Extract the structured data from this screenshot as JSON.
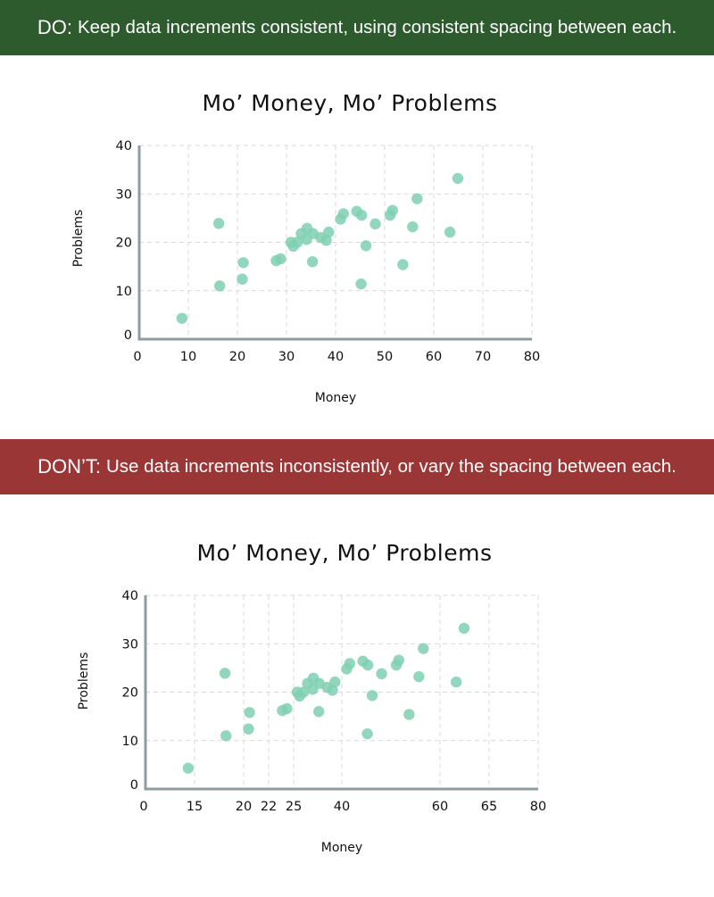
{
  "banners": {
    "do": {
      "lead": "DO:",
      "text": "Keep data increments consistent, using consistent spacing between each.",
      "color": "#2e5b2e"
    },
    "dont": {
      "lead": "DON’T:",
      "text": "Use data increments inconsistently, or vary the spacing between each.",
      "color": "#9b3636"
    }
  },
  "colors": {
    "point": "#7fd0b2",
    "axis": "#8c9c9f",
    "grid": "#d9d9d9"
  },
  "chart_data": [
    {
      "type": "scatter",
      "title": "Mo’ Money, Mo’ Problems",
      "xlabel": "Money",
      "ylabel": "Problems",
      "xlim": [
        0,
        80
      ],
      "ylim": [
        0,
        40
      ],
      "x_ticks": [
        0,
        10,
        20,
        30,
        40,
        50,
        60,
        70,
        80
      ],
      "y_ticks": [
        0,
        10,
        20,
        30,
        40
      ],
      "grid": true,
      "points": [
        {
          "x": 8.7,
          "y": 4.3
        },
        {
          "x": 16.2,
          "y": 23.9
        },
        {
          "x": 16.4,
          "y": 11.0
        },
        {
          "x": 21.0,
          "y": 12.4
        },
        {
          "x": 21.2,
          "y": 15.8
        },
        {
          "x": 27.9,
          "y": 16.2
        },
        {
          "x": 28.8,
          "y": 16.6
        },
        {
          "x": 30.9,
          "y": 20.0
        },
        {
          "x": 31.4,
          "y": 19.2
        },
        {
          "x": 32.2,
          "y": 20.0
        },
        {
          "x": 33.0,
          "y": 21.8
        },
        {
          "x": 34.1,
          "y": 20.6
        },
        {
          "x": 34.2,
          "y": 22.9
        },
        {
          "x": 35.3,
          "y": 16.0
        },
        {
          "x": 35.4,
          "y": 21.8
        },
        {
          "x": 37.0,
          "y": 21.0
        },
        {
          "x": 38.1,
          "y": 20.4
        },
        {
          "x": 38.6,
          "y": 22.1
        },
        {
          "x": 41.0,
          "y": 24.8
        },
        {
          "x": 41.6,
          "y": 25.9
        },
        {
          "x": 44.3,
          "y": 26.4
        },
        {
          "x": 45.2,
          "y": 11.4
        },
        {
          "x": 45.3,
          "y": 25.6
        },
        {
          "x": 46.2,
          "y": 19.3
        },
        {
          "x": 48.1,
          "y": 23.8
        },
        {
          "x": 51.1,
          "y": 25.6
        },
        {
          "x": 51.6,
          "y": 26.6
        },
        {
          "x": 53.7,
          "y": 15.4
        },
        {
          "x": 55.7,
          "y": 23.2
        },
        {
          "x": 56.6,
          "y": 29.0
        },
        {
          "x": 63.3,
          "y": 22.1
        },
        {
          "x": 64.9,
          "y": 33.2
        }
      ]
    },
    {
      "type": "scatter",
      "title": "Mo’ Money, Mo’ Problems",
      "xlabel": "Money",
      "ylabel": "Problems",
      "xlim": [
        0,
        80
      ],
      "ylim": [
        0,
        40
      ],
      "x_ticks": [
        "0",
        "15",
        "20",
        "22",
        "25",
        "40",
        "60",
        "65",
        "80"
      ],
      "x_tick_positions": [
        0,
        10,
        20,
        25.1,
        30.2,
        40,
        60,
        70,
        80
      ],
      "y_ticks": [
        0,
        10,
        20,
        30,
        40
      ],
      "grid": true,
      "points": [
        {
          "x": 8.7,
          "y": 4.3
        },
        {
          "x": 16.2,
          "y": 23.9
        },
        {
          "x": 16.4,
          "y": 11.0
        },
        {
          "x": 21.0,
          "y": 12.4
        },
        {
          "x": 21.2,
          "y": 15.8
        },
        {
          "x": 27.9,
          "y": 16.2
        },
        {
          "x": 28.8,
          "y": 16.6
        },
        {
          "x": 30.9,
          "y": 20.0
        },
        {
          "x": 31.4,
          "y": 19.2
        },
        {
          "x": 32.2,
          "y": 20.0
        },
        {
          "x": 33.0,
          "y": 21.8
        },
        {
          "x": 34.1,
          "y": 20.6
        },
        {
          "x": 34.2,
          "y": 22.9
        },
        {
          "x": 35.3,
          "y": 16.0
        },
        {
          "x": 35.4,
          "y": 21.8
        },
        {
          "x": 37.0,
          "y": 21.0
        },
        {
          "x": 38.1,
          "y": 20.4
        },
        {
          "x": 38.6,
          "y": 22.1
        },
        {
          "x": 41.0,
          "y": 24.8
        },
        {
          "x": 41.6,
          "y": 25.9
        },
        {
          "x": 44.3,
          "y": 26.4
        },
        {
          "x": 45.2,
          "y": 11.4
        },
        {
          "x": 45.3,
          "y": 25.6
        },
        {
          "x": 46.2,
          "y": 19.3
        },
        {
          "x": 48.1,
          "y": 23.8
        },
        {
          "x": 51.1,
          "y": 25.6
        },
        {
          "x": 51.6,
          "y": 26.6
        },
        {
          "x": 53.7,
          "y": 15.4
        },
        {
          "x": 55.7,
          "y": 23.2
        },
        {
          "x": 56.6,
          "y": 29.0
        },
        {
          "x": 63.3,
          "y": 22.1
        },
        {
          "x": 64.9,
          "y": 33.2
        }
      ]
    }
  ]
}
